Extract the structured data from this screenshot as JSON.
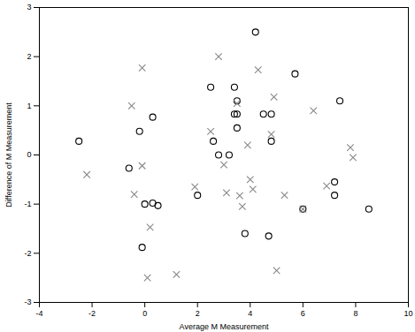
{
  "chart_data": {
    "type": "scatter",
    "xlabel": "Average M Measurement",
    "ylabel": "Difference of M Measurement",
    "xlim": [
      -4,
      10
    ],
    "ylim": [
      -3,
      3
    ],
    "xticks": [
      -4,
      -2,
      0,
      2,
      4,
      6,
      8,
      10
    ],
    "yticks": [
      -3,
      -2,
      -1,
      0,
      1,
      2,
      3
    ],
    "grid": false,
    "series": [
      {
        "color": "#000000",
        "marker": "circle",
        "x": [
          -2.5,
          -0.6,
          -0.2,
          0.3,
          0.0,
          0.3,
          0.5,
          -0.1,
          2.0,
          2.5,
          2.6,
          2.8,
          3.2,
          3.4,
          3.4,
          3.5,
          3.5,
          3.5,
          3.8,
          4.2,
          4.5,
          4.8,
          4.8,
          4.7,
          5.7,
          6.0,
          7.2,
          7.2,
          7.4,
          8.5
        ],
        "y": [
          0.28,
          -0.27,
          0.48,
          0.77,
          -1.0,
          -0.98,
          -1.03,
          -1.88,
          -0.82,
          1.38,
          0.28,
          0.0,
          0.0,
          1.38,
          0.83,
          0.83,
          0.55,
          1.1,
          -1.6,
          2.5,
          0.83,
          0.83,
          0.28,
          -1.65,
          1.65,
          -1.1,
          -0.55,
          -0.82,
          1.1,
          -1.1
        ]
      },
      {
        "color": "#888888",
        "marker": "x",
        "x": [
          -2.2,
          -0.5,
          -0.1,
          -0.4,
          -0.1,
          0.2,
          0.1,
          1.2,
          1.9,
          2.5,
          2.8,
          3.0,
          3.1,
          3.5,
          3.6,
          3.7,
          3.9,
          4.0,
          4.1,
          4.3,
          4.8,
          4.9,
          5.0,
          5.3,
          6.4,
          6.9,
          7.8,
          7.9,
          6.0
        ],
        "y": [
          -0.4,
          1.0,
          1.77,
          -0.8,
          -0.22,
          -1.47,
          -2.5,
          -2.43,
          -0.65,
          0.48,
          2.0,
          -0.2,
          -0.77,
          1.05,
          -0.83,
          -1.05,
          0.2,
          -0.5,
          -0.7,
          1.73,
          0.42,
          1.18,
          -2.35,
          -0.82,
          0.9,
          -0.63,
          0.15,
          -0.05,
          -1.1
        ]
      }
    ]
  }
}
